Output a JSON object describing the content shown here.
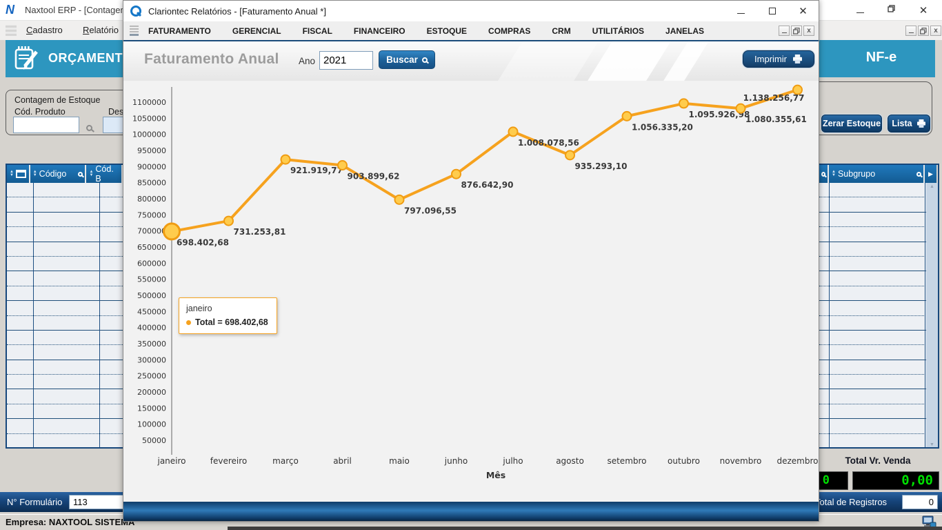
{
  "background_window": {
    "title": "Naxtool ERP - [Contagem de",
    "logo_letter": "N",
    "menu": [
      "Cadastro",
      "Relatório"
    ],
    "banner_left": "ORÇAMENTOS",
    "banner_right": "NF-e",
    "stock_panel": {
      "title": "Contagem de Estoque",
      "cod_produto_label": "Cód. Produto",
      "desc_label": "Desc"
    },
    "left_table": {
      "columns": [
        "Código",
        "Cód. B"
      ],
      "row_count": 18
    },
    "right_table": {
      "columns": [
        "Subgrupo"
      ],
      "row_count": 18
    },
    "buttons": {
      "zerar": "Zerar Estoque",
      "lista": "Lista"
    },
    "totals": {
      "vr_venda_label": "Total Vr. Venda",
      "vr_venda_value": "0,00",
      "partial_lcd_value": "0"
    },
    "form_bar": {
      "label": "N° Formulário",
      "value": "113"
    },
    "registros_bar": {
      "label": "Total de Registros",
      "value": "0"
    },
    "status_text": "Empresa: NAXTOOL SISTEMA"
  },
  "app_window": {
    "title": "Clariontec Relatórios - [Faturamento Anual *]",
    "menu": [
      "FATURAMENTO",
      "GERENCIAL",
      "FISCAL",
      "FINANCEIRO",
      "ESTOQUE",
      "COMPRAS",
      "CRM",
      "UTILITÁRIOS",
      "JANELAS"
    ],
    "header": {
      "title": "Faturamento Anual",
      "year_label": "Ano",
      "year_value": "2021",
      "search_label": "Buscar",
      "print_label": "Imprimir"
    },
    "tooltip": {
      "month": "janeiro",
      "total_text": "Total = 698.402,68"
    }
  },
  "chart_data": {
    "type": "line",
    "title": "Faturamento Anual",
    "xlabel": "Mês",
    "x": [
      "janeiro",
      "fevereiro",
      "março",
      "abril",
      "maio",
      "junho",
      "julho",
      "agosto",
      "setembro",
      "outubro",
      "novembro",
      "dezembro"
    ],
    "series": [
      {
        "name": "Total",
        "values": [
          698402.68,
          731253.81,
          921919.77,
          903899.62,
          797096.55,
          876642.9,
          1008078.56,
          935293.1,
          1056335.2,
          1095926.98,
          1080355.61,
          1138256.77
        ]
      }
    ],
    "value_labels": [
      "698.402,68",
      "731.253,81",
      "921.919,77",
      "903.899,62",
      "797.096,55",
      "876.642,90",
      "1.008.078,56",
      "935.293,10",
      "1.056.335,20",
      "1.095.926,98",
      "1.080.355,61",
      "1.138.256,77"
    ],
    "yticks": [
      50000,
      100000,
      150000,
      200000,
      250000,
      300000,
      350000,
      400000,
      450000,
      500000,
      550000,
      600000,
      650000,
      700000,
      750000,
      800000,
      850000,
      900000,
      950000,
      1000000,
      1050000,
      1100000
    ],
    "ylim": [
      0,
      1150000
    ],
    "grid": false,
    "legend": "none",
    "highlighted_index": 0,
    "line_color": "#F6A21E",
    "marker_fill": "#FFCC4D",
    "marker_stroke": "#F09C12",
    "label_color": "#3a3a3a"
  }
}
